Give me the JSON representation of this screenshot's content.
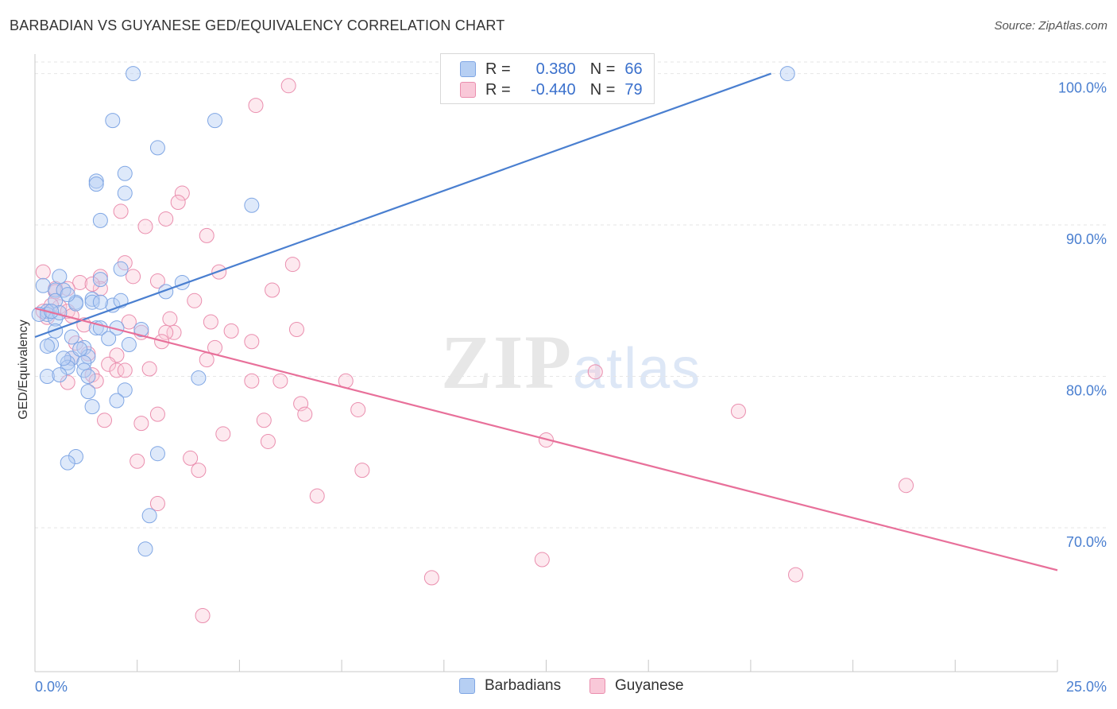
{
  "title": "BARBADIAN VS GUYANESE GED/EQUIVALENCY CORRELATION CHART",
  "source": "Source: ZipAtlas.com",
  "watermark": {
    "part1": "ZIP",
    "part2": "atlas"
  },
  "colors": {
    "blue": "#4a7fd0",
    "blue_fill": "#b6cff3",
    "pink": "#e8709a",
    "pink_fill": "#f9c8d8",
    "axis_label": "#4a7fd0"
  },
  "legend": {
    "series": [
      {
        "name": "Barbadians",
        "r_label": "R =",
        "r_value": "0.380",
        "n_label": "N =",
        "n_value": "66"
      },
      {
        "name": "Guyanese",
        "r_label": "R =",
        "r_value": "-0.440",
        "n_label": "N =",
        "n_value": "79"
      }
    ]
  },
  "chart_data": {
    "type": "scatter",
    "title": "BARBADIAN VS GUYANESE GED/EQUIVALENCY CORRELATION CHART",
    "xlabel": "",
    "ylabel": "GED/Equivalency",
    "xlim": [
      0,
      25
    ],
    "ylim": [
      60.5,
      101.5
    ],
    "x_tick_labels": [
      "0.0%",
      "25.0%"
    ],
    "y_ticks": [
      70,
      80,
      90,
      100
    ],
    "y_tick_labels": [
      "70.0%",
      "80.0%",
      "90.0%",
      "100.0%"
    ],
    "grid": true,
    "series": [
      {
        "name": "Barbadians",
        "color": "#4a7fd0",
        "trend": {
          "x": [
            0,
            18.0
          ],
          "y": [
            82.6,
            100.0
          ]
        },
        "points": [
          [
            2.4,
            100.0
          ],
          [
            18.4,
            100.0
          ],
          [
            1.9,
            96.9
          ],
          [
            4.4,
            96.9
          ],
          [
            3.0,
            95.1
          ],
          [
            1.5,
            92.9
          ],
          [
            2.2,
            93.4
          ],
          [
            1.5,
            92.7
          ],
          [
            2.2,
            92.1
          ],
          [
            5.3,
            91.3
          ],
          [
            1.6,
            90.3
          ],
          [
            2.1,
            87.1
          ],
          [
            0.6,
            86.6
          ],
          [
            1.6,
            86.4
          ],
          [
            3.6,
            86.2
          ],
          [
            0.2,
            86.0
          ],
          [
            0.5,
            85.7
          ],
          [
            3.2,
            85.6
          ],
          [
            0.7,
            85.7
          ],
          [
            1.4,
            85.1
          ],
          [
            0.5,
            85.0
          ],
          [
            1.4,
            84.9
          ],
          [
            1.0,
            84.9
          ],
          [
            1.9,
            84.7
          ],
          [
            0.3,
            84.3
          ],
          [
            0.3,
            84.1
          ],
          [
            0.5,
            83.8
          ],
          [
            0.1,
            84.1
          ],
          [
            1.5,
            83.2
          ],
          [
            1.6,
            83.2
          ],
          [
            2.0,
            83.2
          ],
          [
            2.6,
            83.1
          ],
          [
            0.5,
            83.0
          ],
          [
            0.9,
            82.6
          ],
          [
            0.4,
            82.1
          ],
          [
            0.3,
            82.0
          ],
          [
            2.3,
            82.1
          ],
          [
            1.2,
            81.9
          ],
          [
            1.3,
            81.3
          ],
          [
            0.9,
            81.2
          ],
          [
            0.8,
            80.9
          ],
          [
            1.2,
            80.9
          ],
          [
            1.2,
            80.4
          ],
          [
            0.8,
            80.6
          ],
          [
            0.3,
            80.0
          ],
          [
            0.6,
            80.1
          ],
          [
            1.3,
            80.0
          ],
          [
            4.0,
            79.9
          ],
          [
            2.2,
            79.1
          ],
          [
            1.3,
            79.0
          ],
          [
            2.0,
            78.4
          ],
          [
            1.4,
            78.0
          ],
          [
            3.0,
            74.9
          ],
          [
            1.0,
            74.7
          ],
          [
            0.8,
            74.3
          ],
          [
            2.8,
            70.8
          ],
          [
            2.7,
            68.6
          ],
          [
            1.0,
            84.8
          ],
          [
            0.6,
            84.2
          ],
          [
            0.4,
            84.3
          ],
          [
            1.6,
            84.9
          ],
          [
            0.8,
            85.4
          ],
          [
            2.1,
            85.0
          ],
          [
            0.7,
            81.2
          ],
          [
            1.1,
            81.8
          ],
          [
            1.8,
            82.5
          ]
        ]
      },
      {
        "name": "Guyanese",
        "color": "#e8709a",
        "trend": {
          "x": [
            0,
            25.0
          ],
          "y": [
            84.5,
            67.2
          ]
        },
        "points": [
          [
            6.2,
            99.2
          ],
          [
            5.4,
            97.9
          ],
          [
            3.6,
            92.1
          ],
          [
            3.5,
            91.5
          ],
          [
            2.1,
            90.9
          ],
          [
            3.2,
            90.4
          ],
          [
            2.7,
            89.9
          ],
          [
            4.2,
            89.3
          ],
          [
            2.2,
            87.5
          ],
          [
            6.3,
            87.4
          ],
          [
            0.2,
            86.9
          ],
          [
            4.5,
            86.9
          ],
          [
            1.6,
            86.6
          ],
          [
            2.4,
            86.6
          ],
          [
            3.0,
            86.3
          ],
          [
            1.1,
            86.2
          ],
          [
            1.6,
            85.8
          ],
          [
            0.5,
            85.8
          ],
          [
            0.8,
            85.8
          ],
          [
            1.4,
            86.1
          ],
          [
            5.8,
            85.7
          ],
          [
            0.5,
            85.6
          ],
          [
            3.9,
            85.0
          ],
          [
            0.6,
            84.6
          ],
          [
            0.4,
            84.7
          ],
          [
            0.2,
            84.3
          ],
          [
            0.8,
            84.3
          ],
          [
            0.3,
            83.9
          ],
          [
            3.3,
            83.8
          ],
          [
            4.3,
            83.6
          ],
          [
            6.4,
            83.1
          ],
          [
            4.8,
            83.0
          ],
          [
            2.6,
            82.9
          ],
          [
            3.4,
            82.9
          ],
          [
            3.2,
            82.9
          ],
          [
            5.3,
            82.3
          ],
          [
            1.0,
            82.2
          ],
          [
            4.4,
            81.9
          ],
          [
            3.1,
            82.3
          ],
          [
            1.3,
            81.5
          ],
          [
            2.0,
            81.4
          ],
          [
            0.9,
            81.2
          ],
          [
            4.2,
            81.1
          ],
          [
            1.8,
            80.8
          ],
          [
            2.0,
            80.4
          ],
          [
            2.2,
            80.4
          ],
          [
            2.8,
            80.5
          ],
          [
            1.4,
            80.1
          ],
          [
            1.5,
            79.7
          ],
          [
            0.8,
            79.6
          ],
          [
            5.3,
            79.7
          ],
          [
            6.0,
            79.7
          ],
          [
            7.6,
            79.7
          ],
          [
            13.7,
            80.3
          ],
          [
            6.5,
            78.2
          ],
          [
            7.9,
            77.8
          ],
          [
            6.6,
            77.5
          ],
          [
            3.0,
            77.5
          ],
          [
            2.6,
            76.9
          ],
          [
            1.7,
            77.1
          ],
          [
            17.2,
            77.7
          ],
          [
            5.6,
            77.1
          ],
          [
            4.6,
            76.2
          ],
          [
            12.5,
            75.8
          ],
          [
            5.7,
            75.7
          ],
          [
            2.5,
            74.4
          ],
          [
            3.8,
            74.6
          ],
          [
            4.0,
            73.8
          ],
          [
            8.0,
            73.8
          ],
          [
            21.3,
            72.8
          ],
          [
            6.9,
            72.1
          ],
          [
            3.0,
            71.6
          ],
          [
            12.4,
            67.9
          ],
          [
            9.7,
            66.7
          ],
          [
            18.6,
            66.9
          ],
          [
            4.1,
            64.2
          ],
          [
            1.2,
            83.4
          ],
          [
            0.9,
            84.0
          ],
          [
            2.3,
            83.6
          ]
        ]
      }
    ]
  }
}
